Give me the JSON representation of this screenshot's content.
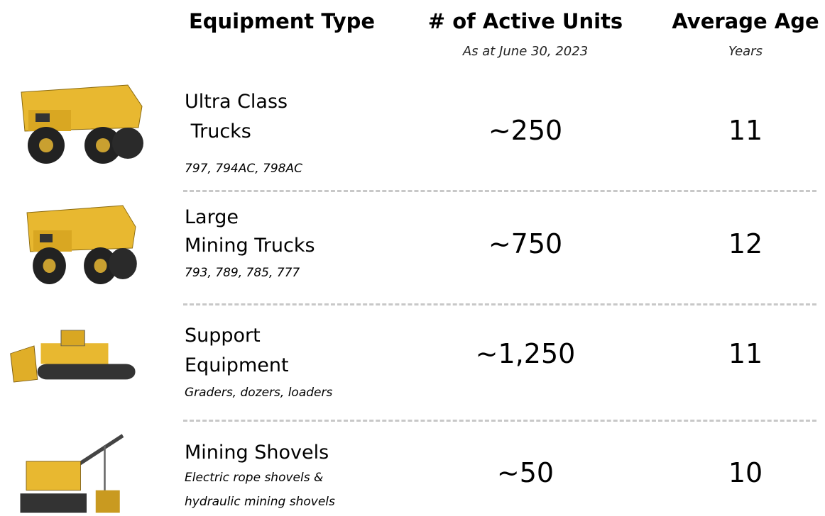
{
  "header": {
    "columns": [
      {
        "title": "Equipment Type"
      },
      {
        "title": "# of Active Units",
        "subtitle": "As at June 30, 2023"
      },
      {
        "title": "Average Age",
        "subtitle": "Years"
      }
    ]
  },
  "rows": [
    {
      "name_lines": [
        "Ultra Class",
        " Trucks"
      ],
      "detail_lines": [
        "797, 794AC, 798AC"
      ],
      "units": "~250",
      "age": "11"
    },
    {
      "name_lines": [
        "Large",
        "Mining Trucks"
      ],
      "detail_lines": [
        "793, 789, 785, 777"
      ],
      "units": "~750",
      "age": "12"
    },
    {
      "name_lines": [
        "Support",
        "Equipment"
      ],
      "detail_lines": [
        "Graders, dozers, loaders"
      ],
      "units": "~1,250",
      "age": "11"
    },
    {
      "name_lines": [
        "Mining Shovels"
      ],
      "detail_lines": [
        "Electric rope shovels &",
        "hydraulic mining shovels"
      ],
      "units": "~50",
      "age": "10"
    }
  ]
}
